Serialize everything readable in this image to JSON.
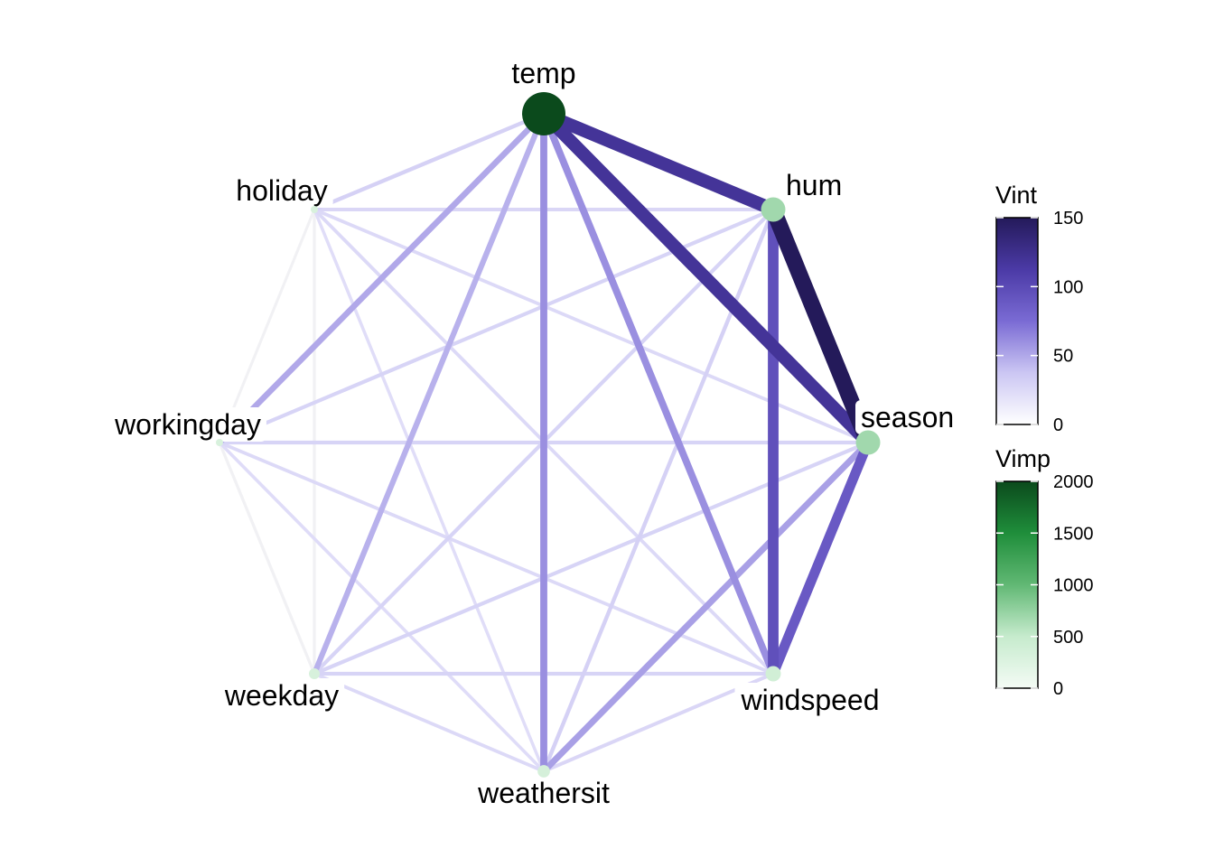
{
  "chart_data": {
    "type": "network",
    "title": "",
    "nodes": [
      {
        "name": "temp",
        "vimp": 2000
      },
      {
        "name": "hum",
        "vimp": 450
      },
      {
        "name": "season",
        "vimp": 450
      },
      {
        "name": "windspeed",
        "vimp": 100
      },
      {
        "name": "weathersit",
        "vimp": 40
      },
      {
        "name": "weekday",
        "vimp": 20
      },
      {
        "name": "workingday",
        "vimp": 0
      },
      {
        "name": "holiday",
        "vimp": 0
      }
    ],
    "edges": [
      {
        "source": "hum",
        "target": "season",
        "vint": 150
      },
      {
        "source": "temp",
        "target": "hum",
        "vint": 115
      },
      {
        "source": "temp",
        "target": "season",
        "vint": 115
      },
      {
        "source": "hum",
        "target": "windspeed",
        "vint": 88
      },
      {
        "source": "season",
        "target": "windspeed",
        "vint": 80
      },
      {
        "source": "temp",
        "target": "weathersit",
        "vint": 48
      },
      {
        "source": "temp",
        "target": "windspeed",
        "vint": 48
      },
      {
        "source": "season",
        "target": "weathersit",
        "vint": 40
      },
      {
        "source": "temp",
        "target": "workingday",
        "vint": 36
      },
      {
        "source": "temp",
        "target": "weekday",
        "vint": 32
      },
      {
        "source": "temp",
        "target": "holiday",
        "vint": 14
      },
      {
        "source": "hum",
        "target": "holiday",
        "vint": 10
      },
      {
        "source": "hum",
        "target": "workingday",
        "vint": 12
      },
      {
        "source": "hum",
        "target": "weekday",
        "vint": 12
      },
      {
        "source": "hum",
        "target": "weathersit",
        "vint": 14
      },
      {
        "source": "season",
        "target": "workingday",
        "vint": 12
      },
      {
        "source": "season",
        "target": "weekday",
        "vint": 12
      },
      {
        "source": "season",
        "target": "holiday",
        "vint": 8
      },
      {
        "source": "windspeed",
        "target": "weekday",
        "vint": 12
      },
      {
        "source": "windspeed",
        "target": "workingday",
        "vint": 8
      },
      {
        "source": "windspeed",
        "target": "weathersit",
        "vint": 10
      },
      {
        "source": "windspeed",
        "target": "holiday",
        "vint": 8
      },
      {
        "source": "weathersit",
        "target": "weekday",
        "vint": 8
      },
      {
        "source": "weathersit",
        "target": "workingday",
        "vint": 6
      },
      {
        "source": "weathersit",
        "target": "holiday",
        "vint": 5
      },
      {
        "source": "weekday",
        "target": "workingday",
        "vint": 3
      },
      {
        "source": "weekday",
        "target": "holiday",
        "vint": 2
      },
      {
        "source": "workingday",
        "target": "holiday",
        "vint": 1
      }
    ],
    "legends": {
      "vint": {
        "title": "Vint",
        "range": [
          0,
          150
        ],
        "ticks": [
          "0",
          "50",
          "100",
          "150"
        ],
        "colors": [
          "#ffffff",
          "#cbc6f3",
          "#7a6bd4",
          "#4b3aa6",
          "#241a5a"
        ]
      },
      "vimp": {
        "title": "Vimp",
        "range": [
          0,
          2000
        ],
        "ticks": [
          "0",
          "500",
          "1000",
          "1500",
          "2000"
        ],
        "colors": [
          "#f4fbf5",
          "#c6ebcd",
          "#61b874",
          "#1f8e3b",
          "#0b4a1c"
        ]
      }
    }
  }
}
